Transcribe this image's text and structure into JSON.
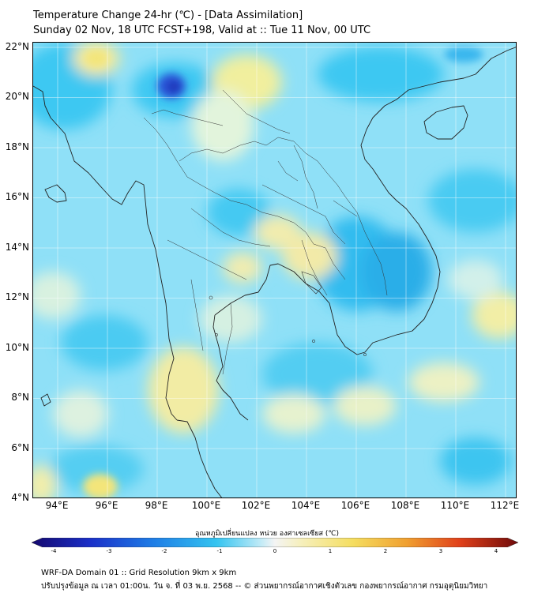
{
  "header": {
    "title": "Temperature Change 24-hr (℃) - [Data Assimilation]",
    "subtitle": "Sunday 02 Nov, 18 UTC FCST+198, Valid at :: Tue 11 Nov, 00 UTC"
  },
  "map": {
    "lat_labels": [
      "22°N",
      "20°N",
      "18°N",
      "16°N",
      "14°N",
      "12°N",
      "10°N",
      "8°N",
      "6°N",
      "4°N"
    ],
    "lon_labels": [
      "94°E",
      "96°E",
      "98°E",
      "100°E",
      "102°E",
      "104°E",
      "106°E",
      "108°E",
      "110°E",
      "112°E"
    ],
    "extent": {
      "lon": [
        93,
        112.5
      ],
      "lat": [
        4,
        22.2
      ]
    },
    "background_color": "#8fe0f7"
  },
  "colorbar": {
    "label": "อุณหภูมิเปลี่ยนแปลง หน่วย องศาเซลเซียส (℃)",
    "ticks": [
      "-4",
      "-3",
      "-2",
      "-1",
      "0",
      "1",
      "2",
      "3",
      "4"
    ],
    "range": [
      -4,
      4
    ],
    "colors": {
      "cold_extreme": "#1a0a86",
      "cold": "#1e6fe0",
      "cool": "#34c4f0",
      "neutral": "#f2f2f2",
      "warm": "#f7e06a",
      "hot": "#e8461b",
      "hot_extreme": "#7a0b0b"
    }
  },
  "footer": {
    "line1": "WRF-DA Domain 01 :: Grid Resolution 9km x 9km",
    "line2": "ปรับปรุงข้อมูล ณ เวลา 01:00น. วัน จ. ที่ 03 พ.ย. 2568 -- © ส่วนพยากรณ์อากาศเชิงตัวเลข กองพยากรณ์อากาศ กรมอุตุนิยมวิทยา"
  }
}
